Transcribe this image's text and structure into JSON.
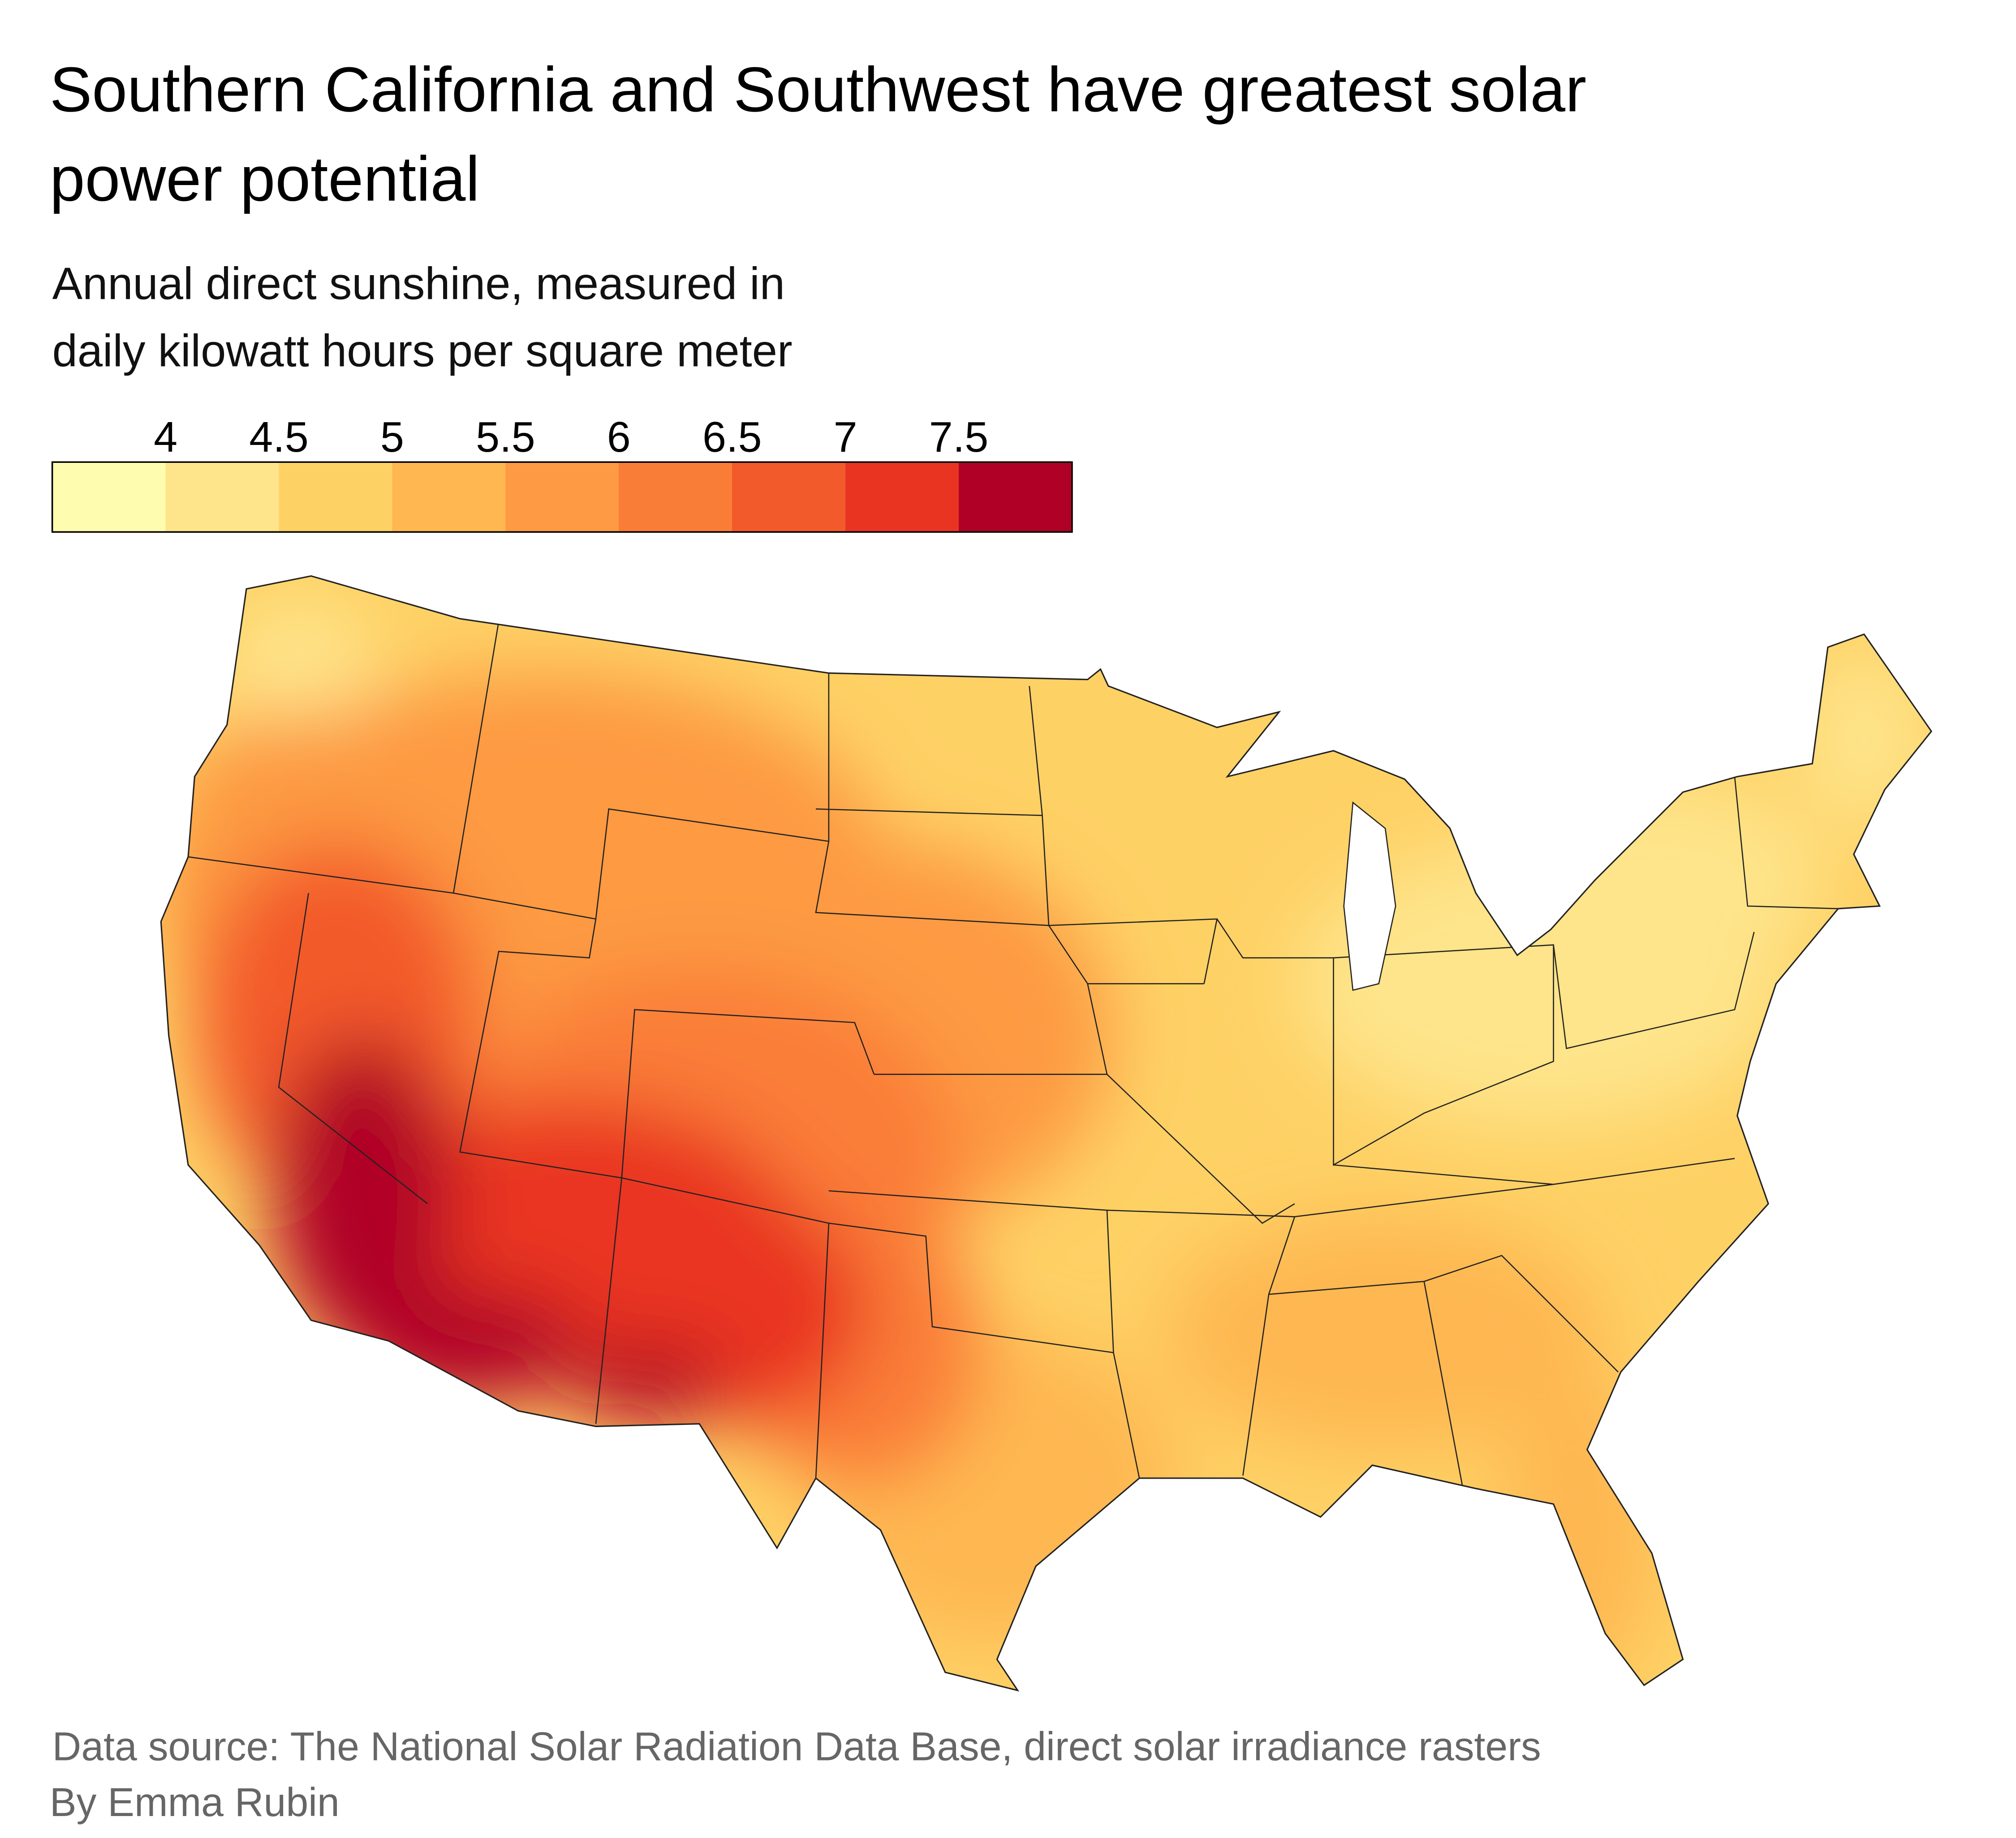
{
  "title": {
    "line1": "Southern California and Southwest have greatest solar",
    "line2": "power potential"
  },
  "subtitle": {
    "line1": "Annual direct sunshine, measured in",
    "line2": "daily kilowatt hours per square meter"
  },
  "legend": {
    "ticks": [
      "4",
      "4.5",
      "5",
      "5.5",
      "6",
      "6.5",
      "7",
      "7.5"
    ],
    "colors": [
      "#fefcaf",
      "#fee48a",
      "#fed165",
      "#feb751",
      "#fd9a43",
      "#fa7d37",
      "#f35a2b",
      "#e93422",
      "#b00026"
    ]
  },
  "map": {
    "region": "Contiguous United States",
    "high_areas": "Southern California, Arizona, New Mexico, Nevada",
    "low_areas": "Great Lakes, Ohio Valley, Northeast, Pacific Northwest coast"
  },
  "footer": {
    "source": "Data source: The National Solar Radiation Data Base, direct solar irradiance rasters",
    "author": "By Emma Rubin"
  }
}
